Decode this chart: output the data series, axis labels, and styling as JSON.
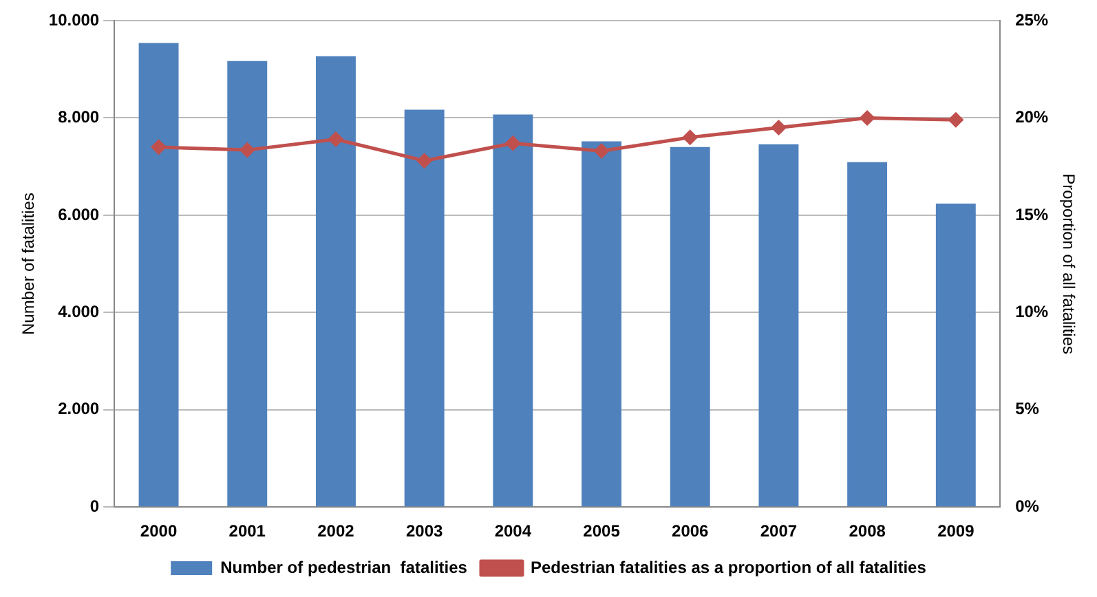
{
  "chart_data": {
    "type": "bar",
    "categories": [
      "2000",
      "2001",
      "2002",
      "2003",
      "2004",
      "2005",
      "2006",
      "2007",
      "2008",
      "2009"
    ],
    "ylabel": "Number of fatalities",
    "y2label": "Proportion of all fatalities",
    "series": [
      {
        "name": "Number of pedestrian  fatalities",
        "color": "#4f81bd",
        "values": [
          9540,
          9170,
          9270,
          8170,
          8070,
          7520,
          7400,
          7460,
          7090,
          6240
        ]
      },
      {
        "name": "Pedestrian fatalities as a proportion of all fatalities",
        "type": "line",
        "axis": "y2",
        "color": "#c0504d",
        "marker": "diamond",
        "values": [
          18.5,
          18.35,
          18.9,
          17.8,
          18.7,
          18.3,
          19.0,
          19.5,
          20.0,
          19.9
        ]
      }
    ],
    "ylim": [
      0,
      10000
    ],
    "yticks": [
      {
        "value": 0,
        "label": "0"
      },
      {
        "value": 2000,
        "label": "2.000"
      },
      {
        "value": 4000,
        "label": "4.000"
      },
      {
        "value": 6000,
        "label": "6.000"
      },
      {
        "value": 8000,
        "label": "8.000"
      },
      {
        "value": 10000,
        "label": "10.000"
      }
    ],
    "y2lim": [
      0,
      25
    ],
    "y2ticks": [
      {
        "value": 0,
        "label": "0%"
      },
      {
        "value": 5,
        "label": "5%"
      },
      {
        "value": 10,
        "label": "10%"
      },
      {
        "value": 15,
        "label": "15%"
      },
      {
        "value": 20,
        "label": "20%"
      },
      {
        "value": 25,
        "label": "25%"
      }
    ],
    "grid": "y",
    "legend": "bottom"
  }
}
